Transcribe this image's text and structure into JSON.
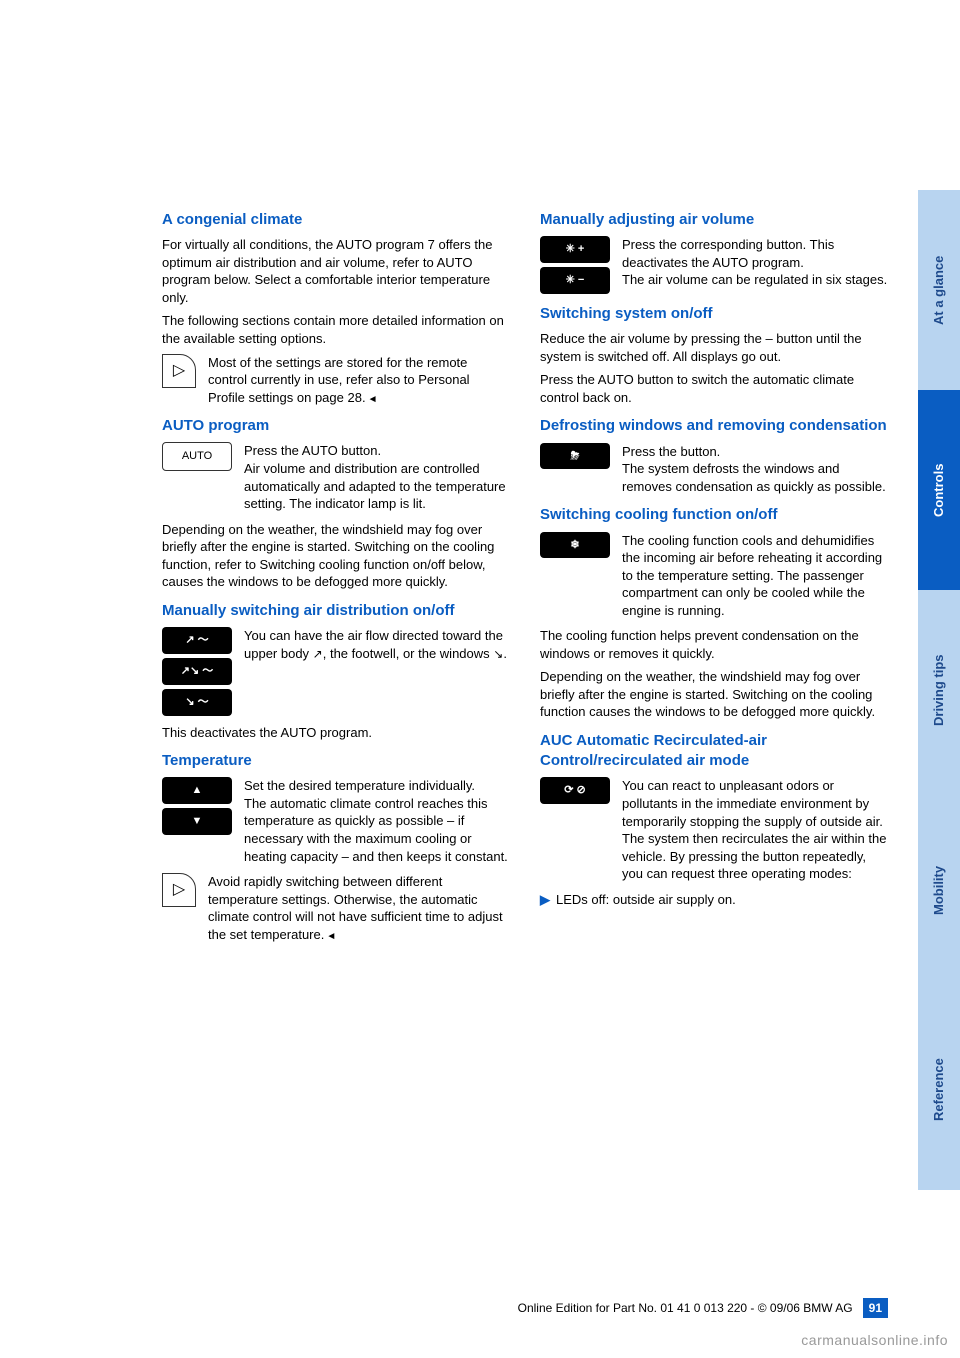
{
  "sideTabs": {
    "glance": "At a glance",
    "controls": "Controls",
    "driving": "Driving tips",
    "mobility": "Mobility",
    "reference": "Reference"
  },
  "left": {
    "h1": "A congenial climate",
    "p1": "For virtually all conditions, the AUTO program 7 offers the optimum air distribution and air volume, refer to AUTO program below. Select a comfortable interior temperature only.",
    "p2": "The following sections contain more detailed information on the available setting options.",
    "hint1a": "Most of the settings are stored for the remote control currently in use, refer also to Personal Profile settings on ",
    "hint1b": "page 28.",
    "h2": "AUTO program",
    "autoBtn": "AUTO",
    "auto1": "Press the AUTO button.",
    "auto2": "Air volume and distribution are controlled automatically and adapted to the temperature setting. The indicator lamp is lit.",
    "auto3": "Depending on the weather, the windshield may fog over briefly after the engine is started. Switching on the cooling function, refer to Switching cooling function on/off below, causes the windows to be defogged more quickly.",
    "h3": "Manually switching air distribution on/off",
    "dist1": "You can have the air flow directed toward the upper body ",
    "dist2": ", the footwell, or the windows ",
    "dist3": ".",
    "dist4": "This deactivates the AUTO program.",
    "h4": "Temperature",
    "temp1": "Set the desired temperature individually.",
    "temp2": "The automatic climate control reaches this temperature as quickly as possible – if necessary with the maximum cooling or heating capacity – and then keeps it constant.",
    "hint2": "Avoid rapidly switching between different temperature settings. Otherwise, the automatic climate control will not have sufficient time to adjust the set ",
    "hint2end": "temperature."
  },
  "right": {
    "h1": "Manually adjusting air volume",
    "vol1": "Press the corresponding button. This deactivates the AUTO program.",
    "vol2": "The air volume can be regulated in six stages.",
    "h2": "Switching system on/off",
    "sw1": "Reduce the air volume by pressing the – button until the system is switched off. All displays go out.",
    "sw2": "Press the AUTO button to switch the automatic climate control back on.",
    "h3": "Defrosting windows and removing condensation",
    "def1": "Press the button.",
    "def2": "The system defrosts the windows and removes condensation as quickly as possible.",
    "h4": "Switching cooling function on/off",
    "cool1": "The cooling function cools and dehumidifies the incoming air before reheating it according to the temperature setting. The passenger compartment can only be cooled while the engine is running.",
    "cool2": "The cooling function helps prevent condensation on the windows or removes it quickly.",
    "cool3": "Depending on the weather, the windshield may fog over briefly after the engine is started. Switching on the cooling function causes the windows to be defogged more quickly.",
    "h5": "AUC Automatic Recirculated-air Control/recirculated air mode",
    "auc1": "You can react to unpleasant odors or pollutants in the immediate environment by temporarily stopping the supply of outside air. The system then recirculates the air within the vehicle. By pressing the button repeatedly, you can request three operating modes:",
    "aucBullet": "LEDs off: outside air supply on."
  },
  "footer": {
    "src": "Online Edition for Part No. 01 41 0 013 220 - © 09/06 BMW AG",
    "page": "91"
  },
  "watermark": "carmanualsonline.info"
}
